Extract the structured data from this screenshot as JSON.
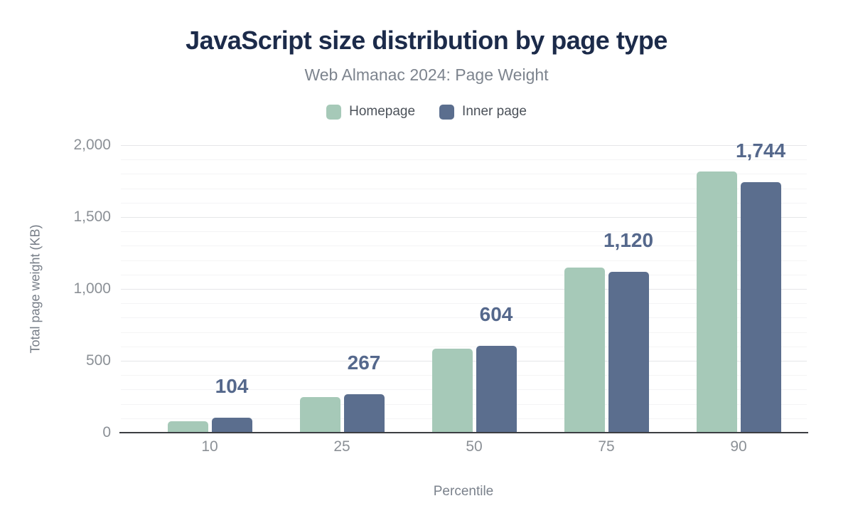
{
  "header": {
    "title": "JavaScript size distribution by page type",
    "subtitle": "Web Almanac 2024: Page Weight"
  },
  "chart_data": {
    "type": "bar",
    "title": "JavaScript size distribution by page type",
    "subtitle": "Web Almanac 2024: Page Weight",
    "categories": [
      "10",
      "25",
      "50",
      "75",
      "90"
    ],
    "series": [
      {
        "name": "Homepage",
        "color": "#a6c9b8",
        "values": [
          80,
          250,
          585,
          1150,
          1815
        ]
      },
      {
        "name": "Inner page",
        "color": "#5b6e8e",
        "values": [
          104,
          267,
          604,
          1120,
          1744
        ],
        "data_labels": [
          "104",
          "267",
          "604",
          "1,120",
          "1,744"
        ]
      }
    ],
    "xlabel": "Percentile",
    "ylabel": "Total page weight (KB)",
    "ylim": [
      0,
      2000
    ],
    "yticks": [
      {
        "v": 0,
        "label": "0"
      },
      {
        "v": 500,
        "label": "500"
      },
      {
        "v": 1000,
        "label": "1,000"
      },
      {
        "v": 1500,
        "label": "1,500"
      },
      {
        "v": 2000,
        "label": "2,000"
      }
    ],
    "minor_grid_interval": 100,
    "major_grid_interval": 500,
    "grid": true,
    "legend_position": "top"
  },
  "colors": {
    "title": "#1c2b4a",
    "subtitle": "#7d848e",
    "homepage_bar": "#a6c9b8",
    "inner_page_bar": "#5b6e8e",
    "data_label": "#55688c",
    "tick_label": "#8b9096",
    "axis_line": "#3c3e42"
  }
}
